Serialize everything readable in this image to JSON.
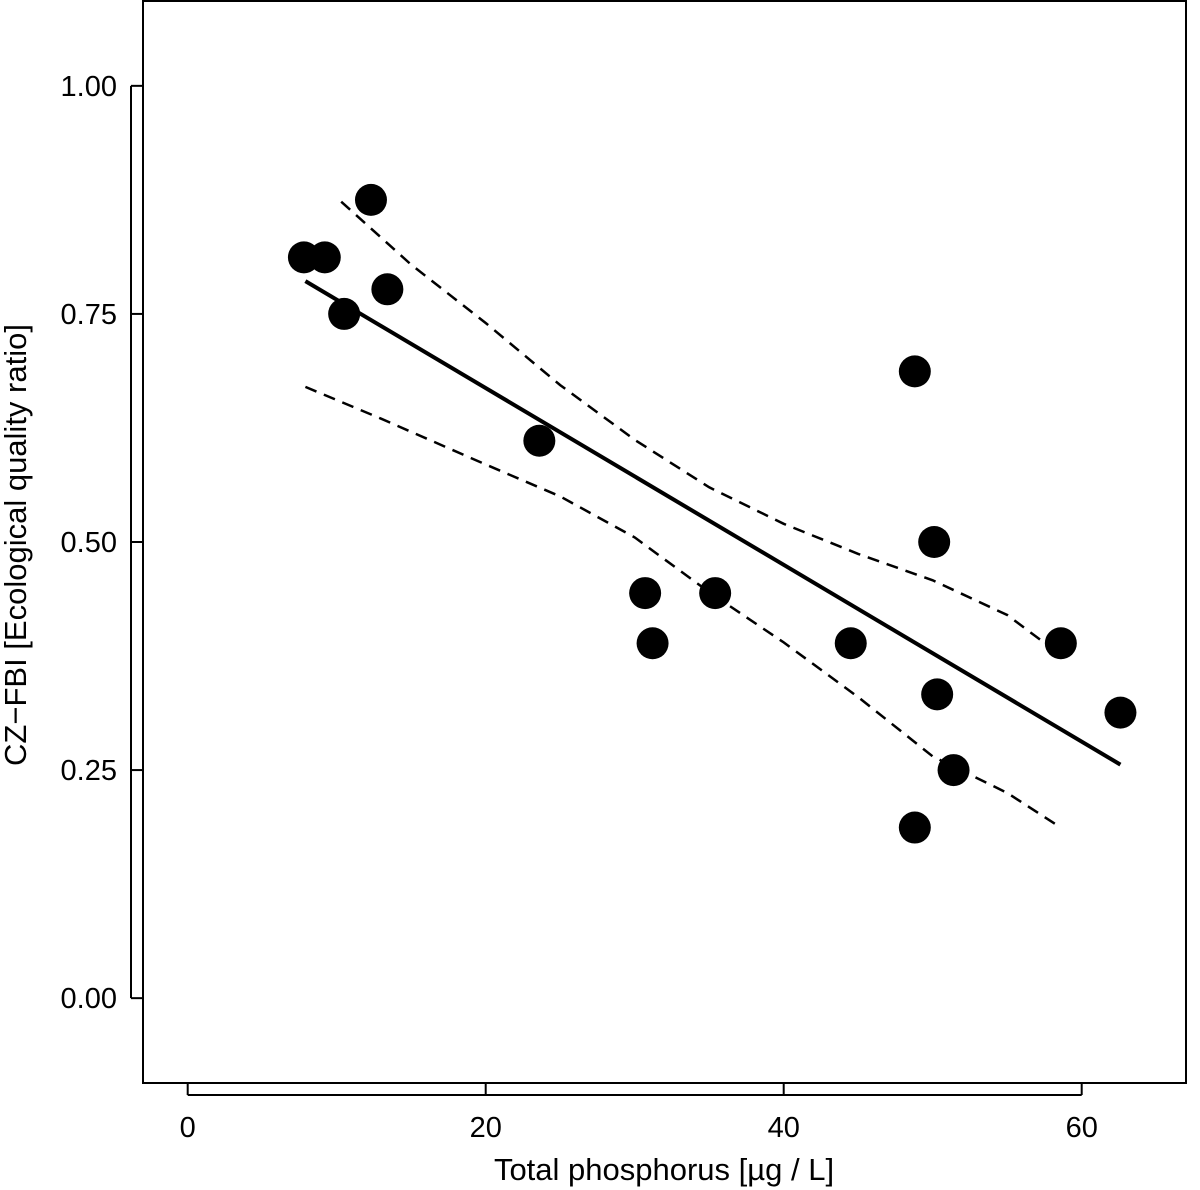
{
  "chart_data": {
    "type": "scatter",
    "title": "",
    "xlabel": "Total phosphorus [µg / L]",
    "ylabel": "CZ−FBI [Ecological quality ratio]",
    "xlim": [
      -3,
      67
    ],
    "ylim": [
      -0.093,
      1.093
    ],
    "x_ticks": [
      0,
      20,
      40,
      60
    ],
    "x_tick_labels": [
      "0",
      "20",
      "40",
      "60"
    ],
    "y_ticks": [
      0,
      0.25,
      0.5,
      0.75,
      1
    ],
    "y_tick_labels": [
      "0.00",
      "0.25",
      "0.50",
      "0.75",
      "1.00"
    ],
    "grid": false,
    "series": [
      {
        "kind": "points",
        "marker": "filled-circle",
        "color": "#000000",
        "points": [
          {
            "x": 7.8,
            "y": 0.812
          },
          {
            "x": 9.2,
            "y": 0.812
          },
          {
            "x": 10.5,
            "y": 0.75
          },
          {
            "x": 12.3,
            "y": 0.875
          },
          {
            "x": 13.4,
            "y": 0.777
          },
          {
            "x": 23.6,
            "y": 0.611
          },
          {
            "x": 30.7,
            "y": 0.444
          },
          {
            "x": 31.2,
            "y": 0.389
          },
          {
            "x": 35.4,
            "y": 0.444
          },
          {
            "x": 44.5,
            "y": 0.389
          },
          {
            "x": 48.8,
            "y": 0.687
          },
          {
            "x": 48.8,
            "y": 0.187
          },
          {
            "x": 50.1,
            "y": 0.5
          },
          {
            "x": 50.3,
            "y": 0.333
          },
          {
            "x": 51.4,
            "y": 0.25
          },
          {
            "x": 58.6,
            "y": 0.389
          },
          {
            "x": 62.6,
            "y": 0.313
          }
        ]
      },
      {
        "kind": "line",
        "style": "solid",
        "color": "#000000",
        "points": [
          {
            "x": 7.9,
            "y": 0.786
          },
          {
            "x": 62.6,
            "y": 0.256
          }
        ]
      },
      {
        "kind": "line",
        "style": "dashed",
        "color": "#000000",
        "points": [
          {
            "x": 10.3,
            "y": 0.873
          },
          {
            "x": 15,
            "y": 0.804
          },
          {
            "x": 20,
            "y": 0.74
          },
          {
            "x": 25,
            "y": 0.672
          },
          {
            "x": 30,
            "y": 0.612
          },
          {
            "x": 35,
            "y": 0.56
          },
          {
            "x": 40,
            "y": 0.52
          },
          {
            "x": 45,
            "y": 0.487
          },
          {
            "x": 50,
            "y": 0.458
          },
          {
            "x": 55,
            "y": 0.42
          },
          {
            "x": 58.6,
            "y": 0.376
          }
        ]
      },
      {
        "kind": "line",
        "style": "dashed",
        "color": "#000000",
        "points": [
          {
            "x": 7.9,
            "y": 0.67
          },
          {
            "x": 13,
            "y": 0.635
          },
          {
            "x": 20,
            "y": 0.585
          },
          {
            "x": 25,
            "y": 0.55
          },
          {
            "x": 30,
            "y": 0.505
          },
          {
            "x": 35,
            "y": 0.445
          },
          {
            "x": 40,
            "y": 0.39
          },
          {
            "x": 45,
            "y": 0.33
          },
          {
            "x": 50,
            "y": 0.265
          },
          {
            "x": 55,
            "y": 0.225
          },
          {
            "x": 58.6,
            "y": 0.187
          }
        ]
      }
    ]
  }
}
